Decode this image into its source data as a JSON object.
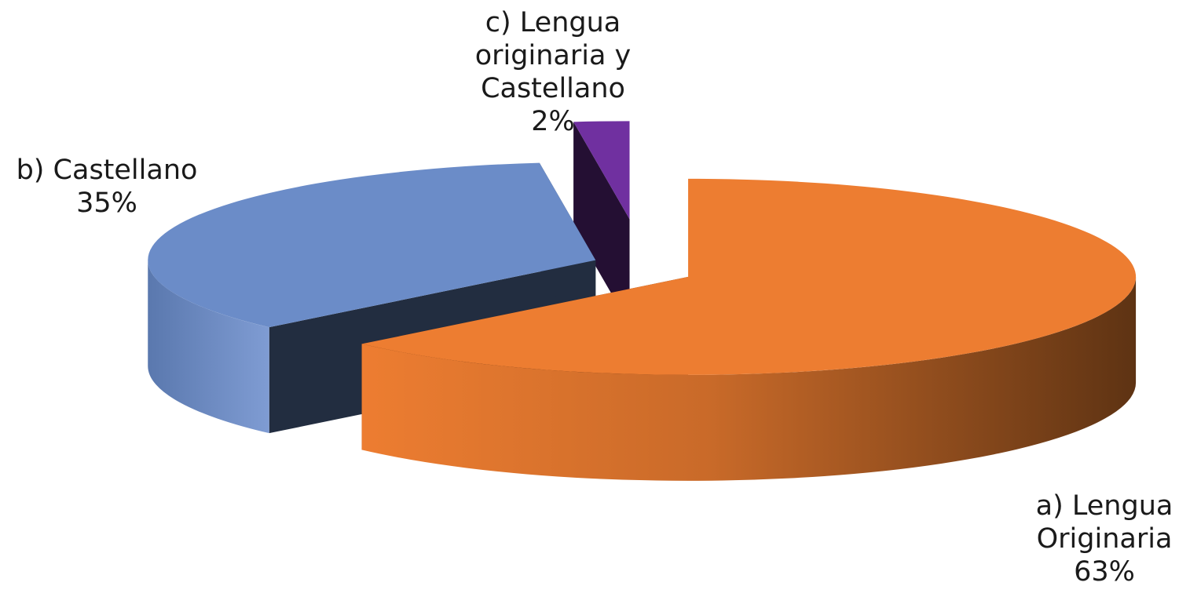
{
  "chart_data": {
    "type": "pie",
    "style": "3d-exploded",
    "legend": "none",
    "slices": [
      {
        "label_lines": [
          "a) Lengua",
          "Originaria"
        ],
        "percent_label": "63%",
        "value": 63,
        "color": "#ED7D31"
      },
      {
        "label_lines": [
          "b) Castellano"
        ],
        "percent_label": "35%",
        "value": 35,
        "color": "#6B8CC8"
      },
      {
        "label_lines": [
          "c) Lengua",
          "originaria y",
          "Castellano"
        ],
        "percent_label": "2%",
        "value": 2,
        "color": "#7030A0"
      }
    ]
  }
}
